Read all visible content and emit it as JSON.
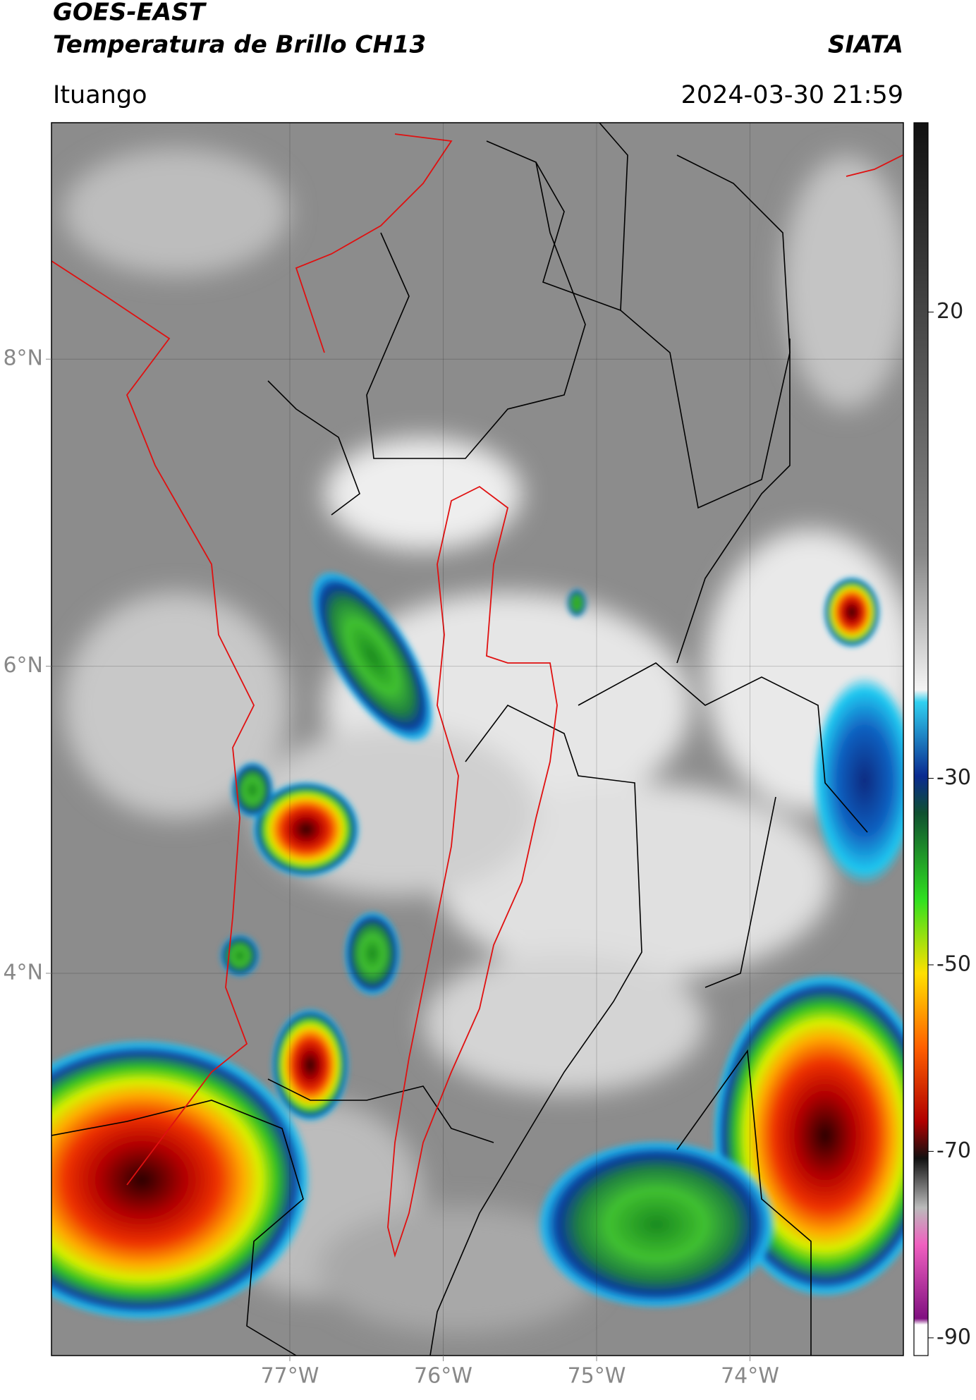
{
  "header": {
    "title": "GOES-EAST",
    "subtitle": "Temperatura de Brillo CH13",
    "brand": "SIATA",
    "location": "Ituango",
    "timestamp": "2024-03-30 21:59"
  },
  "map": {
    "xlim": [
      -78.554,
      -73.0
    ],
    "ylim": [
      9.54,
      1.51
    ],
    "xticks": [
      {
        "value": -77,
        "label": "77°W"
      },
      {
        "value": -76,
        "label": "76°W"
      },
      {
        "value": -75,
        "label": "75°W"
      },
      {
        "value": -74,
        "label": "74°W"
      }
    ],
    "yticks": [
      {
        "value": 8,
        "label": "8°N"
      },
      {
        "value": 6,
        "label": "6°N"
      },
      {
        "value": 4,
        "label": "4°N"
      }
    ],
    "grid": true
  },
  "colorbar": {
    "lim": [
      40.3,
      -91.9
    ],
    "ticks": [
      20,
      -30,
      -50,
      -70,
      -90
    ]
  }
}
